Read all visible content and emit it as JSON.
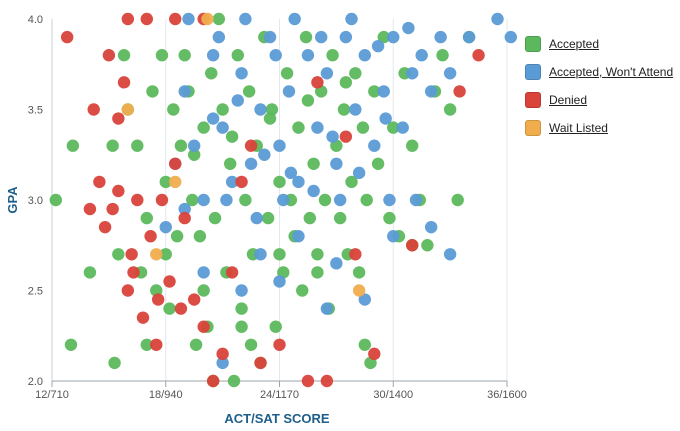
{
  "chart_data": {
    "type": "scatter",
    "xlabel": "ACT/SAT SCORE",
    "ylabel": "GPA",
    "x_ticks": [
      "12/710",
      "18/940",
      "24/1170",
      "30/1400",
      "36/1600"
    ],
    "y_ticks": [
      "2.0",
      "2.5",
      "3.0",
      "3.5",
      "4.0"
    ],
    "xlim": [
      12,
      36
    ],
    "ylim": [
      2.0,
      4.0
    ],
    "grid": "vertical",
    "legend_position": "right",
    "series": [
      {
        "name": "Accepted",
        "color": "#5cb85c",
        "points": [
          [
            12.2,
            3.0
          ],
          [
            13.1,
            3.3
          ],
          [
            13.0,
            2.2
          ],
          [
            14.0,
            2.6
          ],
          [
            15.2,
            3.3
          ],
          [
            15.3,
            2.1
          ],
          [
            15.5,
            2.7
          ],
          [
            15.8,
            3.8
          ],
          [
            16.0,
            3.5
          ],
          [
            16.5,
            3.3
          ],
          [
            16.7,
            2.6
          ],
          [
            17.0,
            2.9
          ],
          [
            17.3,
            3.6
          ],
          [
            17.5,
            2.5
          ],
          [
            17.8,
            3.8
          ],
          [
            18.0,
            3.1
          ],
          [
            18.2,
            2.4
          ],
          [
            18.4,
            3.5
          ],
          [
            18.6,
            2.8
          ],
          [
            18.8,
            3.3
          ],
          [
            19.0,
            3.8
          ],
          [
            19.2,
            3.6
          ],
          [
            19.4,
            3.0
          ],
          [
            19.6,
            2.2
          ],
          [
            19.8,
            2.8
          ],
          [
            20.0,
            3.4
          ],
          [
            20.2,
            2.3
          ],
          [
            20.4,
            3.7
          ],
          [
            20.6,
            2.9
          ],
          [
            20.8,
            4.0
          ],
          [
            21.0,
            3.5
          ],
          [
            21.2,
            2.6
          ],
          [
            21.4,
            3.2
          ],
          [
            21.6,
            2.0
          ],
          [
            21.8,
            3.8
          ],
          [
            22.0,
            2.4
          ],
          [
            22.2,
            3.0
          ],
          [
            22.4,
            3.6
          ],
          [
            22.6,
            2.7
          ],
          [
            22.8,
            3.3
          ],
          [
            23.0,
            2.1
          ],
          [
            23.2,
            3.9
          ],
          [
            23.4,
            2.9
          ],
          [
            23.6,
            3.5
          ],
          [
            23.8,
            2.3
          ],
          [
            24.0,
            3.1
          ],
          [
            24.2,
            2.6
          ],
          [
            24.4,
            3.7
          ],
          [
            24.6,
            3.0
          ],
          [
            24.8,
            2.8
          ],
          [
            25.0,
            3.4
          ],
          [
            25.2,
            2.5
          ],
          [
            25.4,
            3.9
          ],
          [
            25.6,
            2.9
          ],
          [
            25.8,
            3.2
          ],
          [
            26.0,
            2.7
          ],
          [
            26.2,
            3.6
          ],
          [
            26.4,
            3.0
          ],
          [
            26.6,
            2.4
          ],
          [
            26.8,
            3.8
          ],
          [
            27.0,
            3.3
          ],
          [
            27.2,
            2.9
          ],
          [
            27.4,
            3.5
          ],
          [
            27.6,
            2.7
          ],
          [
            27.8,
            3.1
          ],
          [
            28.0,
            3.7
          ],
          [
            28.2,
            2.6
          ],
          [
            28.4,
            3.4
          ],
          [
            28.6,
            3.0
          ],
          [
            28.8,
            2.1
          ],
          [
            29.0,
            3.6
          ],
          [
            29.2,
            3.2
          ],
          [
            29.5,
            3.9
          ],
          [
            29.8,
            2.9
          ],
          [
            30.0,
            3.4
          ],
          [
            30.3,
            2.8
          ],
          [
            30.6,
            3.7
          ],
          [
            31.0,
            3.3
          ],
          [
            31.4,
            3.0
          ],
          [
            31.8,
            2.75
          ],
          [
            32.2,
            3.6
          ],
          [
            32.6,
            3.8
          ],
          [
            33.0,
            3.5
          ],
          [
            33.4,
            3.0
          ],
          [
            34.0,
            3.9
          ],
          [
            21.5,
            3.35
          ],
          [
            23.5,
            3.45
          ],
          [
            25.5,
            3.55
          ],
          [
            19.5,
            3.25
          ],
          [
            27.5,
            3.65
          ],
          [
            18.0,
            2.7
          ],
          [
            20.0,
            2.5
          ],
          [
            22.0,
            2.3
          ],
          [
            24.0,
            2.7
          ],
          [
            26.0,
            2.6
          ],
          [
            20.5,
            2.0
          ],
          [
            22.5,
            2.2
          ],
          [
            28.5,
            2.2
          ],
          [
            17.0,
            2.2
          ],
          [
            31.0,
            2.75
          ]
        ]
      },
      {
        "name": "Accepted, Won't Attend",
        "color": "#5b9bd5",
        "points": [
          [
            18.5,
            3.2
          ],
          [
            19.0,
            3.6
          ],
          [
            19.5,
            3.3
          ],
          [
            20.0,
            3.0
          ],
          [
            20.5,
            3.8
          ],
          [
            21.0,
            3.4
          ],
          [
            21.5,
            3.1
          ],
          [
            22.0,
            3.7
          ],
          [
            22.5,
            3.2
          ],
          [
            23.0,
            3.5
          ],
          [
            23.5,
            3.9
          ],
          [
            24.0,
            3.3
          ],
          [
            24.5,
            3.6
          ],
          [
            25.0,
            3.1
          ],
          [
            25.5,
            3.8
          ],
          [
            26.0,
            3.4
          ],
          [
            26.5,
            3.7
          ],
          [
            27.0,
            3.2
          ],
          [
            27.5,
            3.9
          ],
          [
            28.0,
            3.5
          ],
          [
            28.5,
            3.8
          ],
          [
            29.0,
            3.3
          ],
          [
            29.5,
            3.6
          ],
          [
            30.0,
            3.9
          ],
          [
            30.5,
            3.4
          ],
          [
            31.0,
            3.7
          ],
          [
            31.5,
            3.8
          ],
          [
            32.0,
            3.6
          ],
          [
            32.5,
            3.9
          ],
          [
            33.0,
            3.7
          ],
          [
            34.0,
            3.9
          ],
          [
            35.5,
            4.0
          ],
          [
            36.2,
            3.9
          ],
          [
            19.2,
            4.0
          ],
          [
            20.8,
            3.9
          ],
          [
            22.2,
            4.0
          ],
          [
            23.8,
            3.8
          ],
          [
            24.8,
            4.0
          ],
          [
            26.2,
            3.9
          ],
          [
            27.8,
            4.0
          ],
          [
            29.2,
            3.85
          ],
          [
            30.8,
            3.95
          ],
          [
            21.2,
            3.0
          ],
          [
            22.8,
            2.9
          ],
          [
            24.2,
            3.0
          ],
          [
            25.8,
            3.05
          ],
          [
            27.2,
            3.0
          ],
          [
            29.8,
            3.0
          ],
          [
            31.2,
            3.0
          ],
          [
            23.0,
            2.7
          ],
          [
            25.0,
            2.8
          ],
          [
            27.0,
            2.65
          ],
          [
            28.5,
            2.45
          ],
          [
            26.5,
            2.4
          ],
          [
            21.0,
            2.1
          ],
          [
            22.0,
            2.5
          ],
          [
            24.0,
            2.55
          ],
          [
            30.0,
            2.8
          ],
          [
            32.0,
            2.85
          ],
          [
            33.0,
            2.7
          ],
          [
            20.0,
            2.6
          ],
          [
            18.0,
            2.85
          ],
          [
            19.0,
            2.95
          ],
          [
            20.5,
            3.45
          ],
          [
            21.8,
            3.55
          ],
          [
            23.2,
            3.25
          ],
          [
            24.6,
            3.15
          ],
          [
            26.8,
            3.35
          ],
          [
            28.2,
            3.15
          ],
          [
            29.6,
            3.45
          ]
        ]
      },
      {
        "name": "Denied",
        "color": "#d9433a",
        "points": [
          [
            12.8,
            3.9
          ],
          [
            14.2,
            3.5
          ],
          [
            14.5,
            3.1
          ],
          [
            14.8,
            2.85
          ],
          [
            15.0,
            3.8
          ],
          [
            15.5,
            3.45
          ],
          [
            15.8,
            3.65
          ],
          [
            16.0,
            2.5
          ],
          [
            16.2,
            2.7
          ],
          [
            16.5,
            3.0
          ],
          [
            16.8,
            2.35
          ],
          [
            17.2,
            2.8
          ],
          [
            17.5,
            2.2
          ],
          [
            17.8,
            3.0
          ],
          [
            18.2,
            2.55
          ],
          [
            18.5,
            3.2
          ],
          [
            19.0,
            2.9
          ],
          [
            19.5,
            2.45
          ],
          [
            20.0,
            2.3
          ],
          [
            20.5,
            2.0
          ],
          [
            21.0,
            2.15
          ],
          [
            21.5,
            2.6
          ],
          [
            22.0,
            3.1
          ],
          [
            23.0,
            2.1
          ],
          [
            24.0,
            2.2
          ],
          [
            25.5,
            2.0
          ],
          [
            26.5,
            2.0
          ],
          [
            28.0,
            2.7
          ],
          [
            29.0,
            2.15
          ],
          [
            31.0,
            2.75
          ],
          [
            16.0,
            4.0
          ],
          [
            17.0,
            4.0
          ],
          [
            18.5,
            4.0
          ],
          [
            20.0,
            4.0
          ],
          [
            22.5,
            3.3
          ],
          [
            26.0,
            3.65
          ],
          [
            27.5,
            3.35
          ],
          [
            33.5,
            3.6
          ],
          [
            34.5,
            3.8
          ],
          [
            15.2,
            2.95
          ],
          [
            16.3,
            2.6
          ],
          [
            17.6,
            2.45
          ],
          [
            18.8,
            2.4
          ],
          [
            14.0,
            2.95
          ],
          [
            15.5,
            3.05
          ]
        ]
      },
      {
        "name": "Wait Listed",
        "color": "#f0ad4e",
        "points": [
          [
            16.0,
            3.5
          ],
          [
            18.5,
            3.1
          ],
          [
            20.2,
            4.0
          ],
          [
            17.5,
            2.7
          ],
          [
            28.2,
            2.5
          ]
        ]
      }
    ]
  }
}
